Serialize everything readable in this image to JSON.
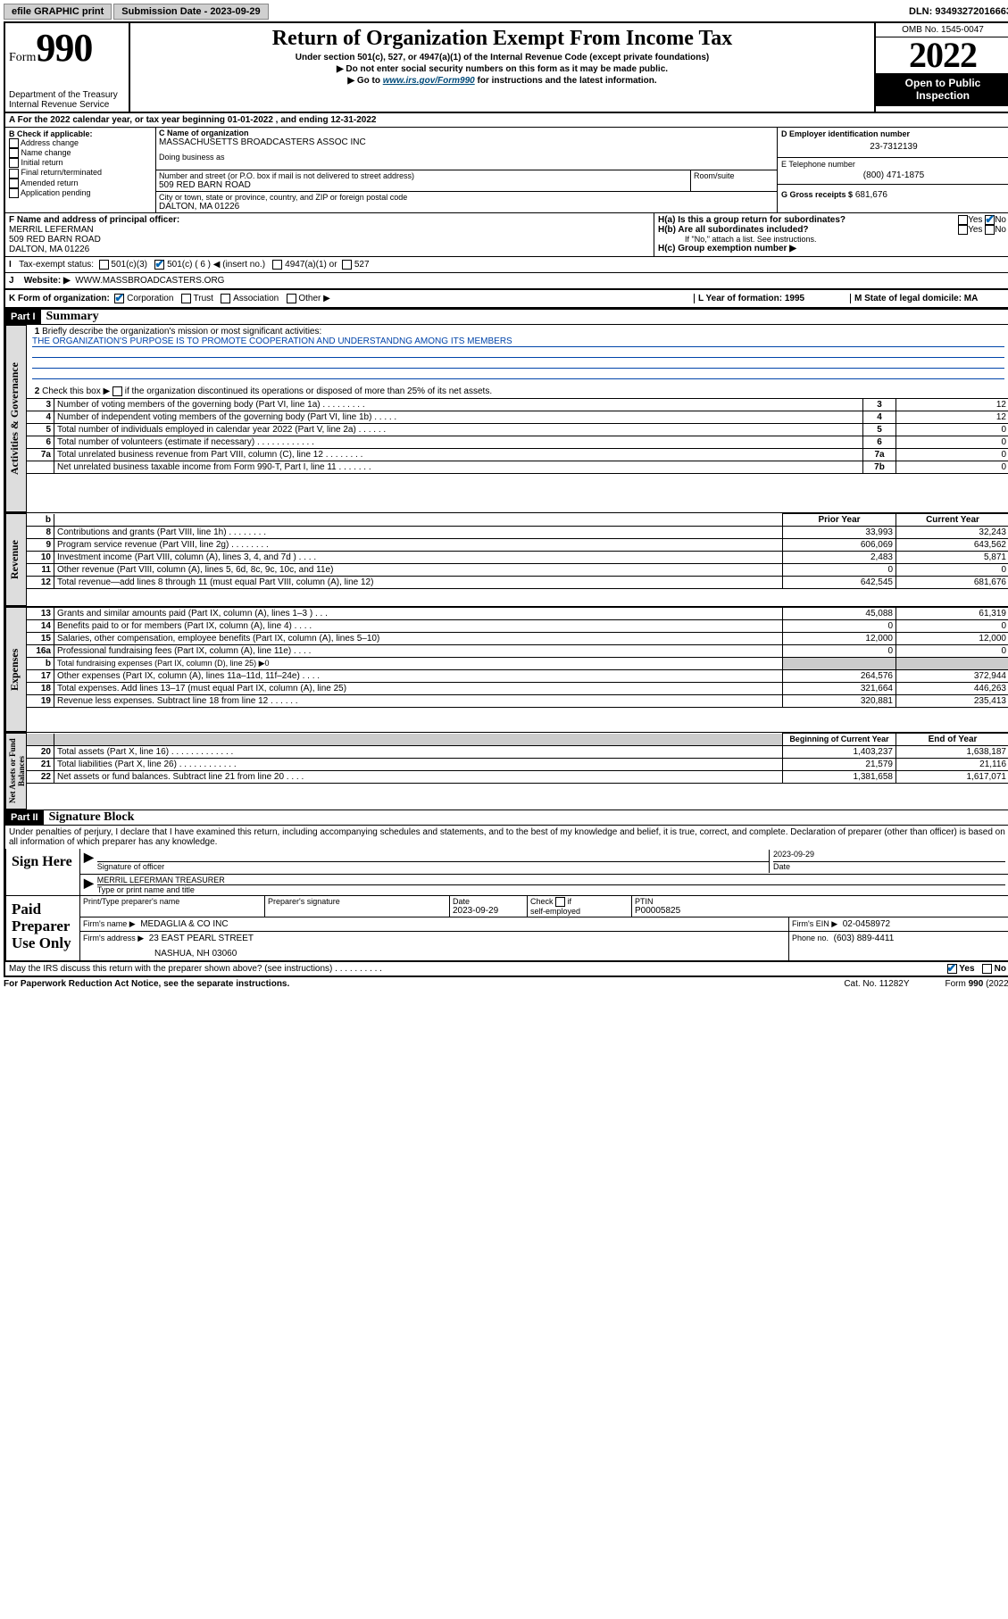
{
  "topbar": {
    "efile": "efile GRAPHIC print",
    "submission_label": "Submission Date - 2023-09-29",
    "dln": "DLN: 93493272016663"
  },
  "header": {
    "form_word": "Form",
    "form_num": "990",
    "dept": "Department of the Treasury",
    "irs": "Internal Revenue Service",
    "title": "Return of Organization Exempt From Income Tax",
    "sub": "Under section 501(c), 527, or 4947(a)(1) of the Internal Revenue Code (except private foundations)",
    "line1": "▶ Do not enter social security numbers on this form as it may be made public.",
    "line2_pre": "▶ Go to ",
    "line2_link": "www.irs.gov/Form990",
    "line2_post": " for instructions and the latest information.",
    "omb": "OMB No. 1545-0047",
    "year": "2022",
    "open": "Open to Public Inspection"
  },
  "A": {
    "text": "For the 2022 calendar year, or tax year beginning 01-01-2022    , and ending 12-31-2022"
  },
  "B": {
    "title": "B Check if applicable:",
    "opts": [
      "Address change",
      "Name change",
      "Initial return",
      "Final return/terminated",
      "Amended return",
      "Application pending"
    ]
  },
  "C": {
    "label": "C Name of organization",
    "name": "MASSACHUSETTS BROADCASTERS ASSOC INC",
    "dba_label": "Doing business as",
    "street_label": "Number and street (or P.O. box if mail is not delivered to street address)",
    "room_label": "Room/suite",
    "street": "509 RED BARN ROAD",
    "city_label": "City or town, state or province, country, and ZIP or foreign postal code",
    "city": "DALTON, MA  01226"
  },
  "D": {
    "label": "D Employer identification number",
    "val": "23-7312139"
  },
  "E": {
    "label": "E Telephone number",
    "val": "(800) 471-1875"
  },
  "G": {
    "label": "G Gross receipts $",
    "val": "681,676"
  },
  "F": {
    "label": "F  Name and address of principal officer:",
    "name": "MERRIL LEFERMAN",
    "street": "509 RED BARN ROAD",
    "city": "DALTON, MA  01226"
  },
  "H": {
    "a": "H(a)  Is this a group return for subordinates?",
    "b": "H(b)  Are all subordinates included?",
    "b_note": "If \"No,\" attach a list. See instructions.",
    "c": "H(c)  Group exemption number ▶",
    "yes": "Yes",
    "no": "No"
  },
  "I": {
    "label": "Tax-exempt status:",
    "o1": "501(c)(3)",
    "o2": "501(c) ( 6 ) ◀ (insert no.)",
    "o3": "4947(a)(1) or",
    "o4": "527"
  },
  "J": {
    "label": "Website: ▶",
    "val": "WWW.MASSBROADCASTERS.ORG"
  },
  "K": {
    "label": "K Form of organization:",
    "o1": "Corporation",
    "o2": "Trust",
    "o3": "Association",
    "o4": "Other ▶"
  },
  "L": {
    "label": "L Year of formation: 1995"
  },
  "M": {
    "label": "M State of legal domicile: MA"
  },
  "part1": {
    "hdr": "Part I",
    "title": "Summary",
    "l1": "Briefly describe the organization's mission or most significant activities:",
    "mission": "THE ORGANIZATION'S PURPOSE IS TO PROMOTE COOPERATION AND UNDERSTANDNG AMONG ITS MEMBERS",
    "l2": "Check this box ▶        if the organization discontinued its operations or disposed of more than 25% of its net assets.",
    "rows_gov": [
      {
        "n": "3",
        "t": "Number of voting members of the governing body (Part VI, line 1a)   .     .     .     .     .     .     .     .     .",
        "b": "3",
        "v": "12"
      },
      {
        "n": "4",
        "t": "Number of independent voting members of the governing body (Part VI, line 1b)  .     .     .     .     .",
        "b": "4",
        "v": "12"
      },
      {
        "n": "5",
        "t": "Total number of individuals employed in calendar year 2022 (Part V, line 2a)   .     .     .     .     .     .",
        "b": "5",
        "v": "0"
      },
      {
        "n": "6",
        "t": "Total number of volunteers (estimate if necessary)   .     .     .     .     .     .     .     .     .     .     .     .",
        "b": "6",
        "v": "0"
      },
      {
        "n": "7a",
        "t": "Total unrelated business revenue from Part VIII, column (C), line 12  .     .     .     .     .     .     .     .",
        "b": "7a",
        "v": "0"
      },
      {
        "n": "",
        "t": "Net unrelated business taxable income from Form 990-T, Part I, line 11    .     .     .     .     .     .     .",
        "b": "7b",
        "v": "0"
      }
    ],
    "col_prior": "Prior Year",
    "col_curr": "Current Year",
    "rows_rev": [
      {
        "n": "8",
        "t": "Contributions and grants (Part VIII, line 1h)   .     .     .     .     .     .     .     .",
        "p": "33,993",
        "c": "32,243"
      },
      {
        "n": "9",
        "t": "Program service revenue (Part VIII, line 2g)   .     .     .     .     .     .     .     .",
        "p": "606,069",
        "c": "643,562"
      },
      {
        "n": "10",
        "t": "Investment income (Part VIII, column (A), lines 3, 4, and 7d )  .     .     .     .",
        "p": "2,483",
        "c": "5,871"
      },
      {
        "n": "11",
        "t": "Other revenue (Part VIII, column (A), lines 5, 6d, 8c, 9c, 10c, and 11e)",
        "p": "0",
        "c": "0"
      },
      {
        "n": "12",
        "t": "Total revenue—add lines 8 through 11 (must equal Part VIII, column (A), line 12)",
        "p": "642,545",
        "c": "681,676"
      }
    ],
    "rows_exp": [
      {
        "n": "13",
        "t": "Grants and similar amounts paid (Part IX, column (A), lines 1–3 )   .     .     .",
        "p": "45,088",
        "c": "61,319"
      },
      {
        "n": "14",
        "t": "Benefits paid to or for members (Part IX, column (A), line 4)   .     .     .     .",
        "p": "0",
        "c": "0"
      },
      {
        "n": "15",
        "t": "Salaries, other compensation, employee benefits (Part IX, column (A), lines 5–10)",
        "p": "12,000",
        "c": "12,000"
      },
      {
        "n": "16a",
        "t": "Professional fundraising fees (Part IX, column (A), line 11e)   .     .     .     .",
        "p": "0",
        "c": "0"
      },
      {
        "n": "b",
        "t": "Total fundraising expenses (Part IX, column (D), line 25) ▶0",
        "p": "",
        "c": "",
        "shade": true
      },
      {
        "n": "17",
        "t": "Other expenses (Part IX, column (A), lines 11a–11d, 11f–24e)   .     .     .     .",
        "p": "264,576",
        "c": "372,944"
      },
      {
        "n": "18",
        "t": "Total expenses. Add lines 13–17 (must equal Part IX, column (A), line 25)",
        "p": "321,664",
        "c": "446,263"
      },
      {
        "n": "19",
        "t": "Revenue less expenses. Subtract line 18 from line 12  .     .     .     .     .     .",
        "p": "320,881",
        "c": "235,413"
      }
    ],
    "col_beg": "Beginning of Current Year",
    "col_end": "End of Year",
    "rows_net": [
      {
        "n": "20",
        "t": "Total assets (Part X, line 16)   .     .     .     .     .     .     .     .     .     .     .     .     .",
        "p": "1,403,237",
        "c": "1,638,187"
      },
      {
        "n": "21",
        "t": "Total liabilities (Part X, line 26)  .     .     .     .     .     .     .     .     .     .     .     .",
        "p": "21,579",
        "c": "21,116"
      },
      {
        "n": "22",
        "t": "Net assets or fund balances. Subtract line 21 from line 20   .     .     .     .",
        "p": "1,381,658",
        "c": "1,617,071"
      }
    ],
    "vtabs": {
      "gov": "Activities & Governance",
      "rev": "Revenue",
      "exp": "Expenses",
      "net": "Net Assets or Fund Balances"
    }
  },
  "part2": {
    "hdr": "Part II",
    "title": "Signature Block",
    "decl": "Under penalties of perjury, I declare that I have examined this return, including accompanying schedules and statements, and to the best of my knowledge and belief, it is true, correct, and complete. Declaration of preparer (other than officer) is based on all information of which preparer has any knowledge.",
    "sign_here": "Sign Here",
    "sig_officer": "Signature of officer",
    "sig_date": "2023-09-29",
    "date_label": "Date",
    "officer_name": "MERRIL LEFERMAN  TREASURER",
    "officer_label": "Type or print name and title",
    "paid": "Paid Preparer Use Only",
    "prep_name_label": "Print/Type preparer's name",
    "prep_sig_label": "Preparer's signature",
    "prep_date_label": "Date",
    "prep_date": "2023-09-29",
    "check_self": "Check         if self-employed",
    "ptin_label": "PTIN",
    "ptin": "P00005825",
    "firm_name_label": "Firm's name      ▶",
    "firm_name": "MEDAGLIA & CO INC",
    "firm_ein_label": "Firm's EIN ▶",
    "firm_ein": "02-0458972",
    "firm_addr_label": "Firm's address ▶",
    "firm_addr1": "23 EAST PEARL STREET",
    "firm_addr2": "NASHUA, NH  03060",
    "phone_label": "Phone no.",
    "phone": "(603) 889-4411",
    "may_irs": "May the IRS discuss this return with the preparer shown above? (see instructions)    .     .     .     .     .     .     .     .     .     .",
    "yes": "Yes",
    "no": "No"
  },
  "footer": {
    "l": "For Paperwork Reduction Act Notice, see the separate instructions.",
    "c": "Cat. No. 11282Y",
    "r": "Form 990 (2022)"
  }
}
